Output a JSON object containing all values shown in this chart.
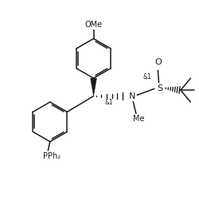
{
  "bg_color": "#ffffff",
  "line_color": "#1a1a1a",
  "line_width": 1.1,
  "font_size": 7.0,
  "figsize": [
    2.5,
    2.61
  ],
  "dpi": 100,
  "xlim": [
    0,
    100
  ],
  "ylim": [
    0,
    104
  ]
}
